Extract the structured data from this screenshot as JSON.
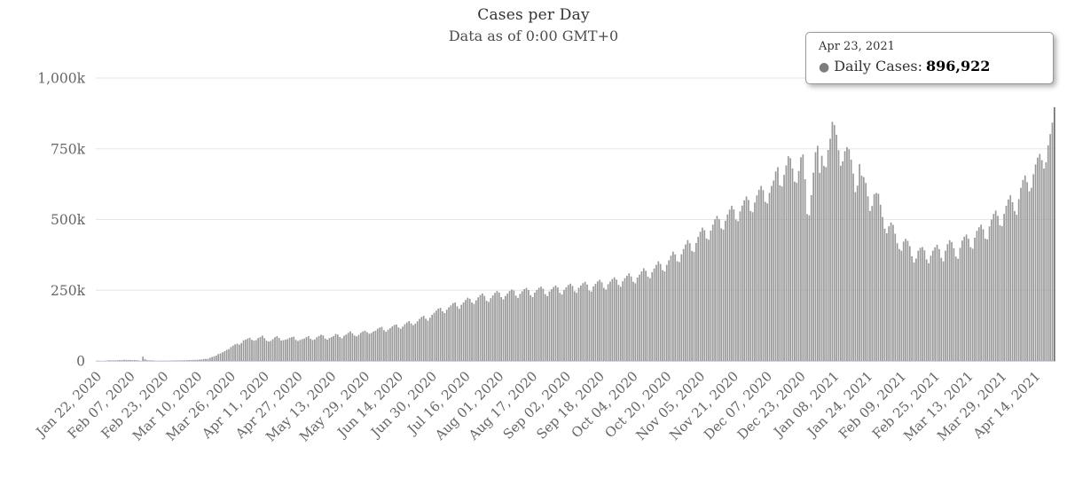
{
  "chart": {
    "title": "Cases per Day",
    "subtitle": "Data as of 0:00 GMT+0",
    "tooltip": {
      "date": "Apr 23, 2021",
      "series_label": "Daily Cases:",
      "value": "896,922"
    }
  },
  "colors": {
    "grid": "#e6e6e6",
    "axis_line": "#ccd6eb",
    "axis_label": "#666666",
    "title": "#333333",
    "bar": "#999999",
    "bar_hover": "#6e6e6e",
    "tooltip_marker": "#7d7d7d"
  },
  "chart_data": {
    "type": "bar",
    "title": "Cases per Day",
    "subtitle": "Data as of 0:00 GMT+0",
    "series_name": "Daily Cases",
    "x_unit": "day",
    "x_start_date": "2020-01-22",
    "x_end_date": "2021-04-23",
    "x_tick_interval_days": 16,
    "x_tick_labels": [
      "Jan 22, 2020",
      "Feb 07, 2020",
      "Feb 23, 2020",
      "Mar 10, 2020",
      "Mar 26, 2020",
      "Apr 11, 2020",
      "Apr 27, 2020",
      "May 13, 2020",
      "May 29, 2020",
      "Jun 14, 2020",
      "Jun 30, 2020",
      "Jul 16, 2020",
      "Aug 01, 2020",
      "Aug 17, 2020",
      "Sep 02, 2020",
      "Sep 18, 2020",
      "Oct 04, 2020",
      "Oct 20, 2020",
      "Nov 05, 2020",
      "Nov 21, 2020",
      "Dec 07, 2020",
      "Dec 23, 2020",
      "Jan 08, 2021",
      "Jan 24, 2021",
      "Feb 09, 2021",
      "Feb 25, 2021",
      "Mar 13, 2021",
      "Mar 29, 2021",
      "Apr 14, 2021"
    ],
    "y_ticks": [
      0,
      250000,
      500000,
      750000,
      1000000
    ],
    "y_tick_labels": [
      "0",
      "250k",
      "500k",
      "750k",
      "1,000k"
    ],
    "ylim": [
      0,
      1000000
    ],
    "grid": true,
    "legend": false,
    "bar_color": "#999999",
    "hovered_index": 457,
    "hovered_value_label": "896,922",
    "values": [
      550,
      590,
      260,
      460,
      680,
      800,
      2600,
      1750,
      2000,
      2100,
      2600,
      2800,
      3200,
      3900,
      3700,
      3200,
      3400,
      2700,
      3000,
      2600,
      2100,
      400,
      15150,
      6500,
      2600,
      2000,
      2150,
      1900,
      500,
      550,
      600,
      1000,
      750,
      600,
      900,
      1100,
      1400,
      1500,
      1800,
      1800,
      1900,
      2200,
      2300,
      2500,
      2800,
      3000,
      3600,
      3900,
      4200,
      4600,
      5200,
      6700,
      7100,
      7300,
      11300,
      13900,
      16600,
      18700,
      24400,
      26900,
      30600,
      34300,
      39500,
      42000,
      49200,
      54400,
      58700,
      61200,
      57700,
      63200,
      72800,
      75600,
      79200,
      82000,
      74700,
      71800,
      73600,
      81000,
      84500,
      89700,
      80700,
      71700,
      68700,
      70800,
      76900,
      84000,
      87600,
      81100,
      72200,
      73600,
      75200,
      77300,
      81600,
      84200,
      85700,
      74500,
      70500,
      74200,
      77000,
      79500,
      84300,
      87900,
      78600,
      74300,
      76100,
      83800,
      88400,
      92700,
      90300,
      79400,
      75200,
      80900,
      84300,
      88000,
      95600,
      93100,
      84500,
      80400,
      89300,
      93500,
      99800,
      104700,
      97300,
      89700,
      87000,
      92300,
      99700,
      104500,
      107100,
      101700,
      96200,
      98900,
      104200,
      106800,
      113800,
      117900,
      120400,
      108900,
      103200,
      110700,
      115800,
      121900,
      127200,
      128500,
      118400,
      113800,
      121300,
      129800,
      136200,
      141000,
      132900,
      126500,
      131800,
      140200,
      148700,
      155600,
      159400,
      149300,
      142500,
      152700,
      163200,
      170300,
      178100,
      184900,
      187800,
      175600,
      169200,
      181100,
      189900,
      196500,
      204300,
      206800,
      193100,
      184700,
      198500,
      206900,
      215600,
      223700,
      219800,
      206600,
      201700,
      214400,
      224800,
      232900,
      238300,
      229900,
      212700,
      208800,
      222100,
      231600,
      240500,
      247200,
      241900,
      225700,
      217900,
      229800,
      238500,
      247300,
      252700,
      249100,
      230900,
      222800,
      237300,
      246400,
      254100,
      258200,
      250800,
      232500,
      225900,
      241700,
      250900,
      258600,
      262700,
      255300,
      236100,
      229300,
      245500,
      253800,
      261400,
      266800,
      259800,
      240800,
      234700,
      251200,
      260400,
      268700,
      273300,
      265100,
      246200,
      240900,
      258600,
      266500,
      274900,
      279900,
      270100,
      249100,
      245300,
      263400,
      272600,
      281400,
      286900,
      278100,
      258300,
      252200,
      271500,
      280600,
      289700,
      295800,
      287300,
      268800,
      262400,
      281900,
      292800,
      301200,
      309800,
      298900,
      279900,
      274600,
      294700,
      305200,
      316800,
      327700,
      318600,
      298100,
      292400,
      313600,
      326800,
      339700,
      352100,
      342600,
      320900,
      316500,
      339900,
      355600,
      371900,
      386400,
      376500,
      352400,
      349800,
      376800,
      395600,
      411900,
      427300,
      416200,
      389100,
      385300,
      416900,
      438600,
      456700,
      471200,
      462300,
      432800,
      428600,
      460900,
      481600,
      500900,
      512600,
      501300,
      468900,
      464200,
      495800,
      517900,
      534800,
      548200,
      535700,
      499900,
      494200,
      528900,
      549300,
      567800,
      581600,
      568900,
      530100,
      525900,
      560300,
      585400,
      604800,
      618700,
      603800,
      562400,
      556800,
      594300,
      618600,
      637900,
      669700,
      684900,
      621100,
      616900,
      657700,
      691200,
      723700,
      716800,
      680300,
      633900,
      629800,
      671300,
      719900,
      729800,
      642300,
      519100,
      514900,
      586200,
      665700,
      738100,
      760400,
      665100,
      725400,
      689300,
      685200,
      745800,
      785600,
      845300,
      833900,
      799700,
      745200,
      689900,
      705800,
      741600,
      755900,
      748200,
      711300,
      662500,
      596900,
      619800,
      695600,
      655400,
      649900,
      629300,
      582200,
      529900,
      547800,
      589600,
      593700,
      591100,
      552300,
      508900,
      467800,
      451300,
      475900,
      489600,
      481100,
      449900,
      416300,
      395800,
      389600,
      421900,
      431600,
      424800,
      405700,
      369900,
      348200,
      361900,
      389700,
      399800,
      402600,
      391300,
      358800,
      345600,
      371900,
      389900,
      401800,
      410900,
      395600,
      364300,
      351900,
      389600,
      412800,
      426700,
      419900,
      398600,
      368800,
      361200,
      399900,
      425600,
      438900,
      446800,
      431900,
      402300,
      396800,
      435700,
      459900,
      472600,
      481900,
      465800,
      432100,
      429900,
      475600,
      499800,
      519900,
      531600,
      512900,
      479900,
      476200,
      519900,
      548600,
      570900,
      585600,
      561300,
      529900,
      516800,
      571900,
      611900,
      639800,
      655700,
      631900,
      599900,
      612300,
      659900,
      694800,
      718900,
      731600,
      709900,
      679900,
      701900,
      762300,
      801900,
      842600,
      896922
    ]
  }
}
